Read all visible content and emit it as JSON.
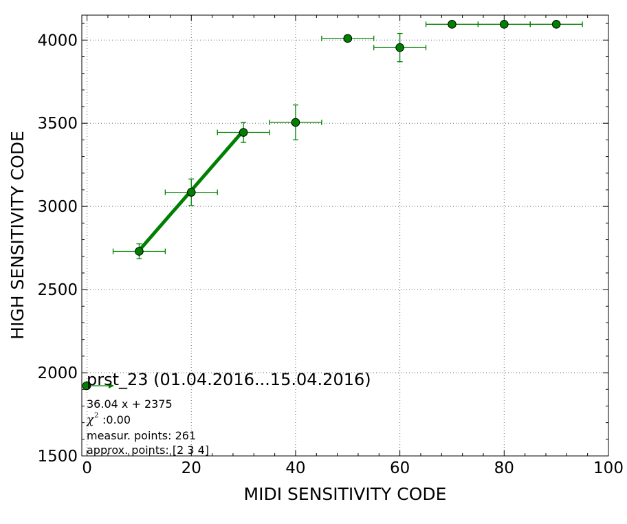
{
  "chart_data": {
    "type": "scatter",
    "xlabel": "MIDI SENSITIVITY CODE",
    "ylabel": "HIGH SENSITIVITY CODE",
    "xlim": [
      -1,
      100
    ],
    "ylim": [
      1500,
      4150
    ],
    "xticks": [
      0,
      20,
      40,
      60,
      80,
      100
    ],
    "yticks": [
      1500,
      2000,
      2500,
      3000,
      3500,
      4000
    ],
    "grid": true,
    "colors": {
      "series": "#008000",
      "marker_edge": "#000000",
      "grid": "#666666",
      "axis": "#000000"
    },
    "points": [
      {
        "x": 10,
        "y": 2730,
        "xerr": 5,
        "yerr": 45,
        "in_fit": true
      },
      {
        "x": 20,
        "y": 3085,
        "xerr": 5,
        "yerr": 80,
        "in_fit": true
      },
      {
        "x": 30,
        "y": 3445,
        "xerr": 5,
        "yerr": 60,
        "in_fit": true
      },
      {
        "x": 40,
        "y": 3505,
        "xerr": 5,
        "yerr": 105,
        "in_fit": false
      },
      {
        "x": 50,
        "y": 4010,
        "xerr": 5,
        "yerr": 0,
        "in_fit": false
      },
      {
        "x": 60,
        "y": 3955,
        "xerr": 5,
        "yerr": 85,
        "in_fit": false
      },
      {
        "x": 70,
        "y": 4095,
        "xerr": 5,
        "yerr": 0,
        "in_fit": false
      },
      {
        "x": 80,
        "y": 4095,
        "xerr": 5,
        "yerr": 0,
        "in_fit": false
      },
      {
        "x": 90,
        "y": 4095,
        "xerr": 5,
        "yerr": 0,
        "in_fit": false
      }
    ],
    "fit_line": {
      "slope": 36.04,
      "intercept": 2375,
      "x_range": [
        10,
        30
      ]
    },
    "legend": {
      "placement": "lower-left",
      "title": "prst_23 (01.04.2016...15.04.2016)",
      "lines": [
        "36.04 x + 2375",
        ":0.00",
        "measur. points: 261",
        "approx. points: [2 3 4]"
      ],
      "chi_symbol": "χ",
      "chi_superscript": "2"
    }
  }
}
